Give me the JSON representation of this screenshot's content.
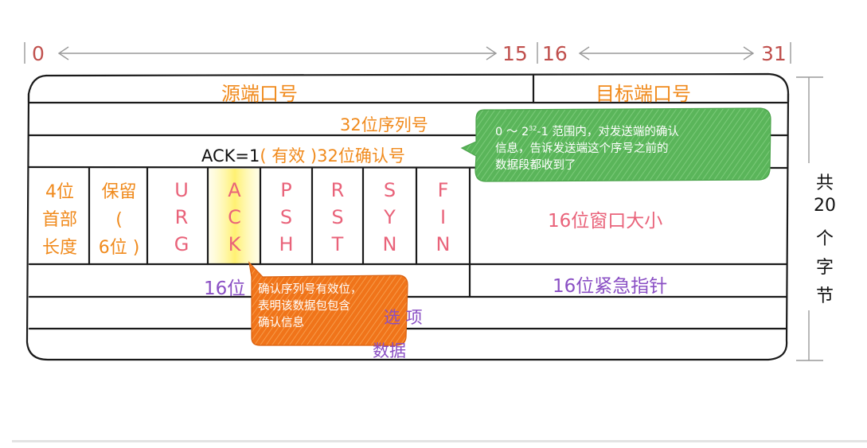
{
  "ruler": {
    "bit_0": "0",
    "bit_15": "15",
    "bit_16": "16",
    "bit_31": "31"
  },
  "fields": {
    "source_port": "源端口号",
    "dest_port": "目标端口号",
    "seq_number": "32位序列号",
    "ack_prefix": "ACK=1",
    "ack_valid": "( 有效 )",
    "ack_number": "32位确认号",
    "header_length": [
      "4位",
      "首部",
      "长度"
    ],
    "reserved": [
      "保留",
      "(",
      "6位 )"
    ],
    "flags": [
      {
        "name": "urg",
        "letters": [
          "U",
          "R",
          "G"
        ]
      },
      {
        "name": "ack",
        "letters": [
          "A",
          "C",
          "K"
        ]
      },
      {
        "name": "psh",
        "letters": [
          "P",
          "S",
          "H"
        ]
      },
      {
        "name": "rst",
        "letters": [
          "R",
          "S",
          "T"
        ]
      },
      {
        "name": "syn",
        "letters": [
          "S",
          "Y",
          "N"
        ]
      },
      {
        "name": "fin",
        "letters": [
          "F",
          "I",
          "N"
        ]
      }
    ],
    "window_size": "16位窗口大小",
    "checksum": "16位",
    "urgent_pointer": "16位紧急指针",
    "options": "选 项",
    "data": "数据"
  },
  "callouts": {
    "green": {
      "line1_prefix": "0 ～ 2",
      "line1_sup": "32",
      "line1_suffix": "-1 范围内，对发送端的确认",
      "line2": "信息，告诉发送端这个序号之前的",
      "line3": "数据段都收到了"
    },
    "orange": {
      "line1": "确认序列号有效位，",
      "line2": "表明该数据包包含",
      "line3": "确认信息"
    }
  },
  "sidebar": {
    "chars": [
      "共",
      "20",
      "个",
      "字",
      "节"
    ]
  },
  "colors": {
    "ruler_text": "#c0504d",
    "source_port": "#f08a1c",
    "flag_text": "#e9637a",
    "purple_text": "#8a4fc4",
    "ack_highlight": "#fff27a",
    "green_callout": "#5cb85c",
    "orange_callout": "#f07a1e"
  }
}
